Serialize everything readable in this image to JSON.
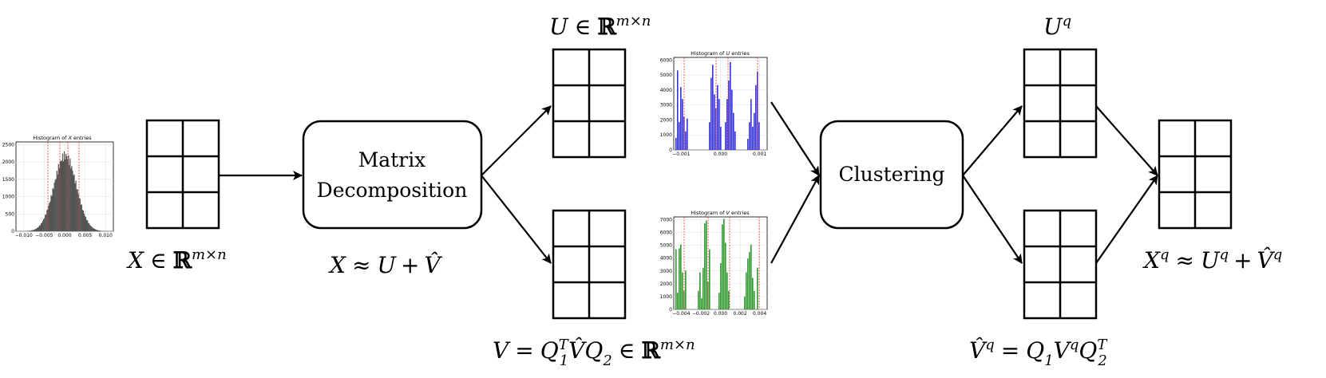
{
  "nodes": {
    "decomposition": {
      "line1": "Matrix",
      "line2": "Decomposition"
    },
    "clustering": {
      "label": "Clustering"
    }
  },
  "labels": {
    "x_def": {
      "var": "X",
      "in": "∈",
      "set": "ℝ",
      "dim": "m×n"
    },
    "x_approx": {
      "lhs": "X",
      "approx": "≈",
      "u": "U",
      "plus": "+",
      "vhat": "V̂"
    },
    "u_def": {
      "var": "U",
      "in": "∈",
      "set": "ℝ",
      "dim": "m×n"
    },
    "v_def": {
      "lhs": "V",
      "eq": "=",
      "q1": "Q",
      "q1sub": "1",
      "q1sup": "T",
      "vhat": "V̂",
      "q2": "Q",
      "q2sub": "2",
      "in": "∈",
      "set": "ℝ",
      "dim": "m×n"
    },
    "uq": {
      "var": "U",
      "sup": "q"
    },
    "vq_def": {
      "lhs": "V̂",
      "lhssup": "q",
      "eq": "=",
      "q1": "Q",
      "q1sub": "1",
      "v": "V",
      "vsup": "q",
      "q2": "Q",
      "q2sub": "2",
      "q2sup": "T"
    },
    "xq_approx": {
      "lhs": "X",
      "lhssup": "q",
      "approx": "≈",
      "u": "U",
      "usup": "q",
      "plus": "+",
      "vhat": "V̂",
      "vsup": "q"
    }
  },
  "histograms": {
    "x": {
      "title_pre": "Histogram of ",
      "title_var": "X",
      "title_post": " entries",
      "bar_color": "#555555",
      "yticks": [
        "0",
        "500",
        "1000",
        "1500",
        "2000",
        "2500"
      ],
      "xticks": [
        "−0.010",
        "−0.005",
        "0.000",
        "0.005",
        "0.010"
      ]
    },
    "u": {
      "title_pre": "Histogram of ",
      "title_var": "U",
      "title_post": " entries",
      "bar_color": "#3333dd",
      "yticks": [
        "0",
        "1000",
        "2000",
        "3000",
        "4000",
        "5000",
        "6000"
      ],
      "xticks": [
        "−0.001",
        "0.000",
        "0.001"
      ]
    },
    "v": {
      "title_pre": "Histogram of ",
      "title_var": "V",
      "title_post": " entries",
      "bar_color": "#339933",
      "yticks": [
        "0",
        "1000",
        "2000",
        "3000",
        "4000",
        "5000",
        "6000",
        "7000"
      ],
      "xticks": [
        "−0.004",
        "−0.002",
        "0.000",
        "0.002",
        "0.004"
      ]
    }
  }
}
